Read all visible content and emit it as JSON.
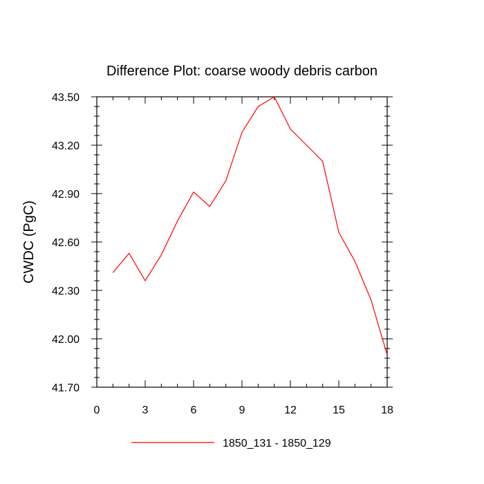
{
  "chart_data": {
    "type": "line",
    "title": "Difference Plot: coarse woody debris carbon",
    "xlabel": "",
    "ylabel": "CWDC  (PgC)",
    "xlim": [
      0,
      18
    ],
    "ylim": [
      41.7,
      43.5
    ],
    "x_ticks": [
      "0",
      "3",
      "6",
      "9",
      "12",
      "15",
      "18"
    ],
    "y_ticks": [
      "43.50",
      "43.20",
      "42.90",
      "42.60",
      "42.30",
      "42.00",
      "41.70"
    ],
    "x_tick_values": [
      0,
      3,
      6,
      9,
      12,
      15,
      18
    ],
    "y_tick_values": [
      43.5,
      43.2,
      42.9,
      42.6,
      42.3,
      42.0,
      41.7
    ],
    "grid": false,
    "legend_position": "bottom-center",
    "series": [
      {
        "name": "1850_131 - 1850_129",
        "color": "#ff0000",
        "x": [
          1,
          2,
          3,
          4,
          5,
          6,
          7,
          8,
          9,
          10,
          11,
          12,
          13,
          14,
          15,
          16,
          17,
          18
        ],
        "values": [
          42.41,
          42.53,
          42.36,
          42.52,
          42.73,
          42.91,
          42.82,
          42.98,
          43.28,
          43.44,
          43.5,
          43.3,
          43.2,
          43.1,
          42.66,
          42.48,
          42.24,
          41.9
        ]
      }
    ]
  }
}
